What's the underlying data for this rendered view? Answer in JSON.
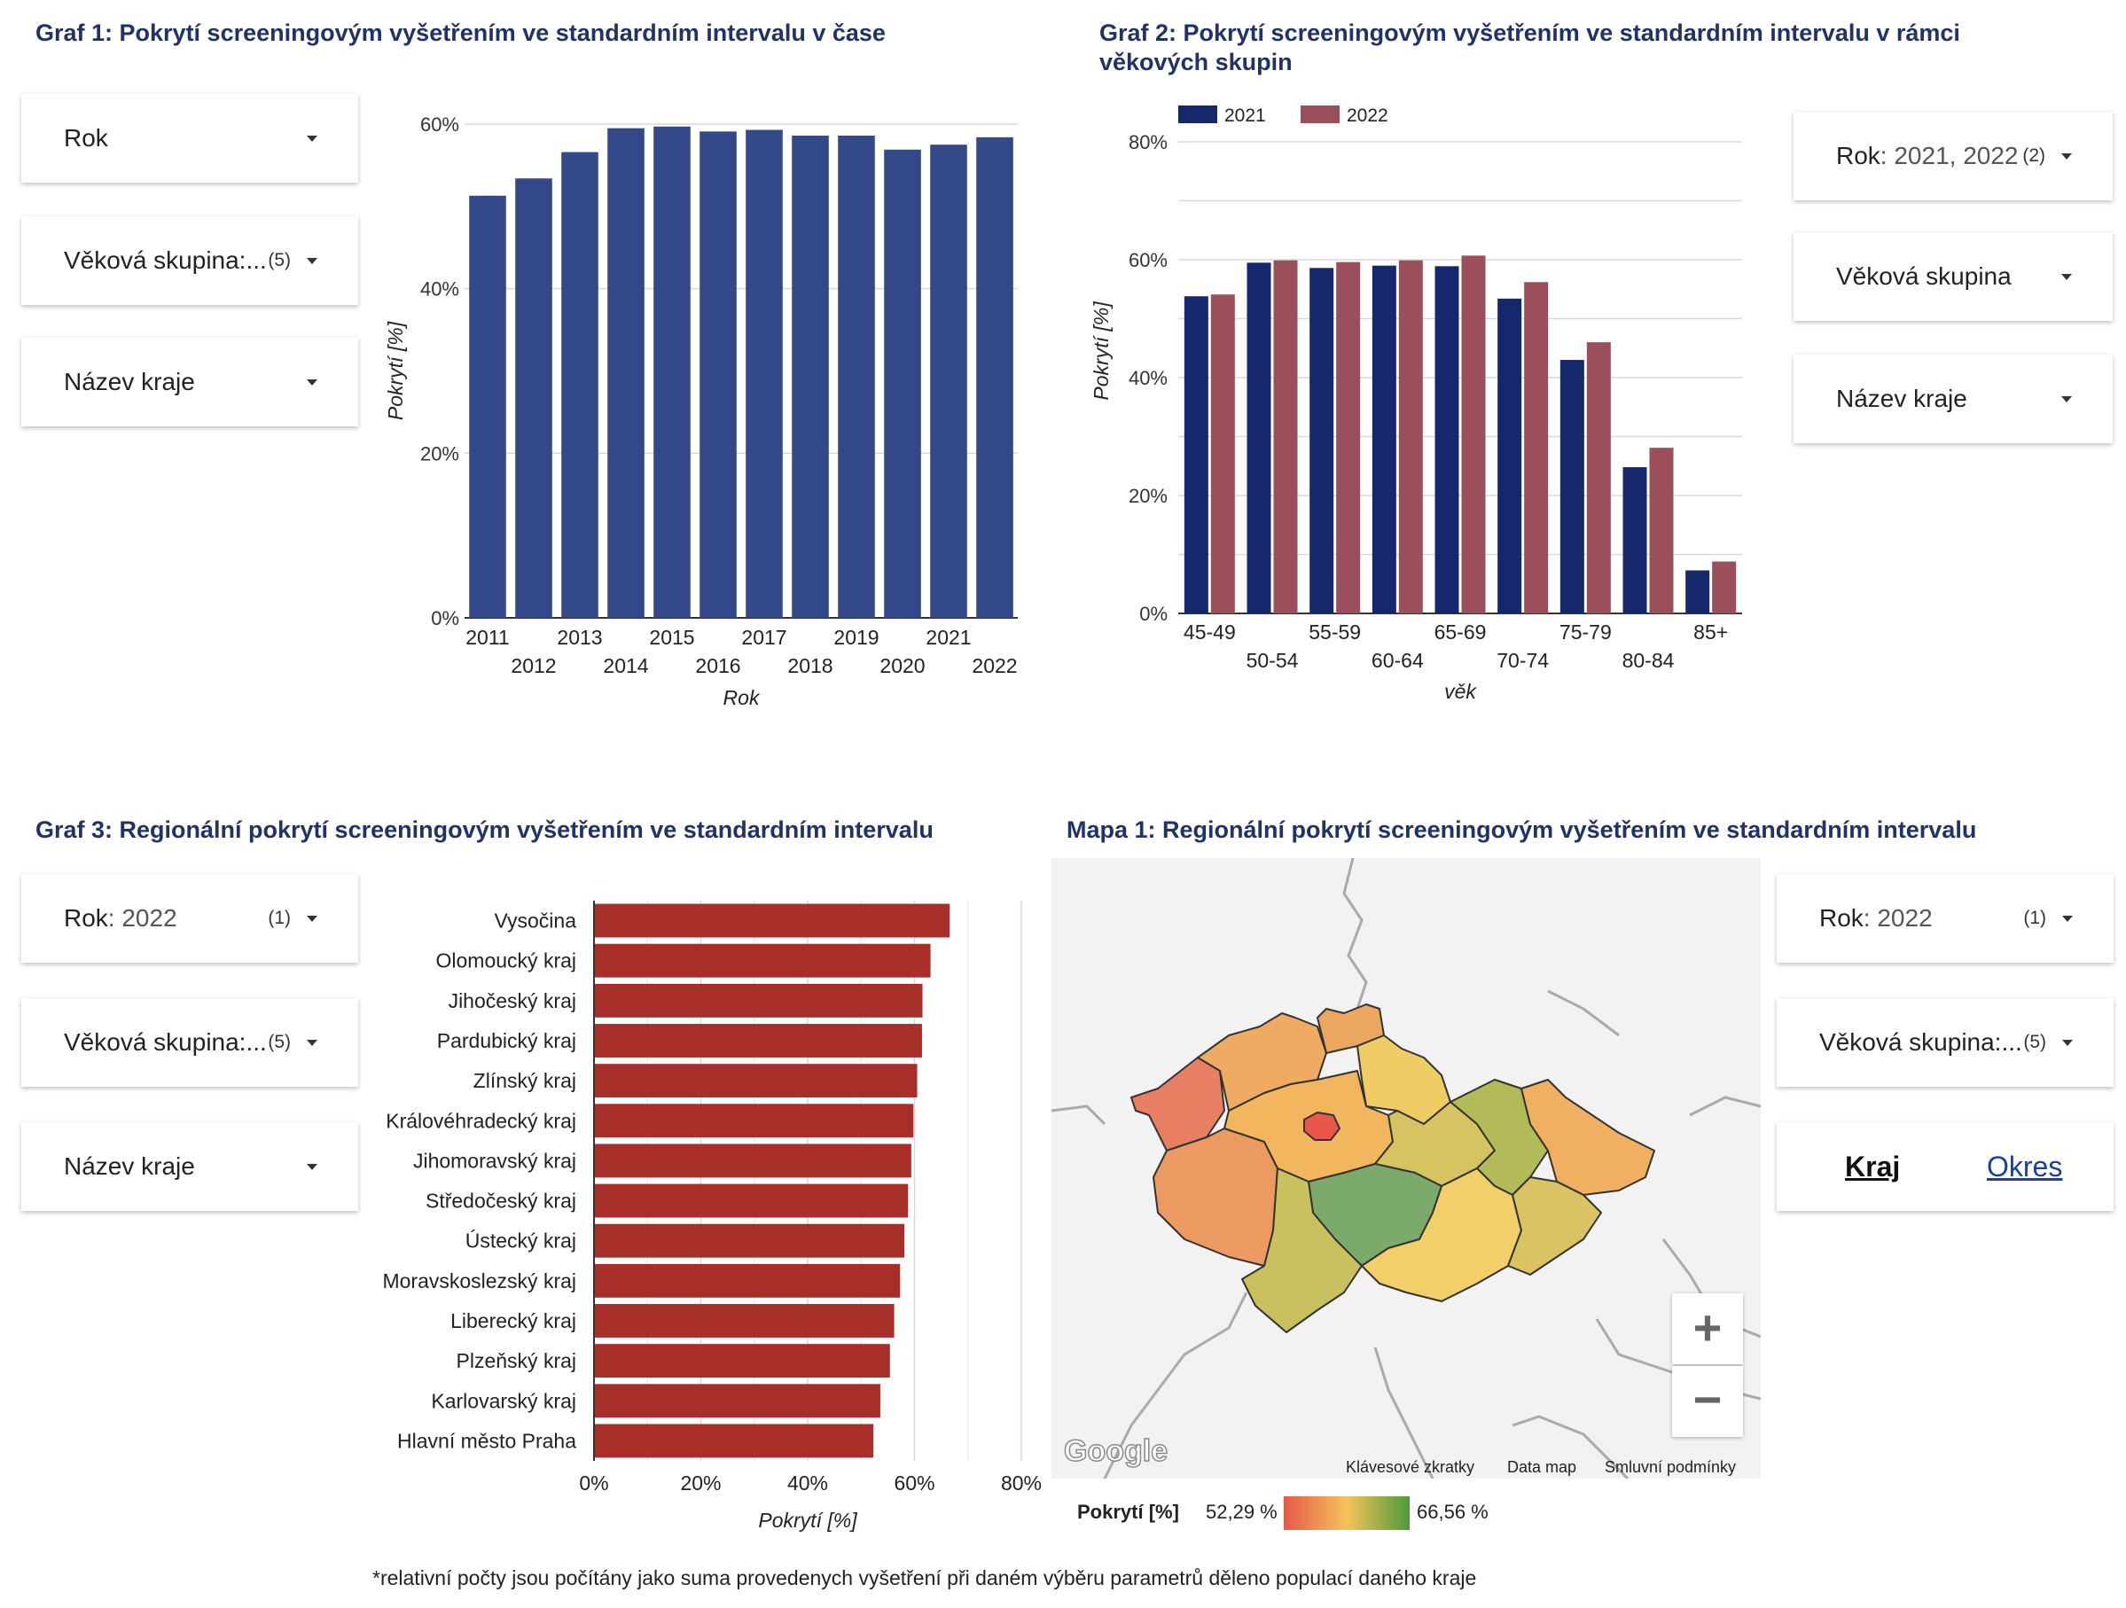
{
  "chart1": {
    "title": "Graf 1: Pokrytí screeningovým vyšetřením ve standardním intervalu v čase",
    "filters": [
      {
        "label": "Rok",
        "value": "",
        "count": ""
      },
      {
        "label": "Věková skupina:...",
        "value": "",
        "count": "(5)"
      },
      {
        "label": "Název kraje",
        "value": "",
        "count": ""
      }
    ],
    "chart_data": {
      "type": "bar",
      "categories": [
        "2011",
        "2012",
        "2013",
        "2014",
        "2015",
        "2016",
        "2017",
        "2018",
        "2019",
        "2020",
        "2021",
        "2022"
      ],
      "values": [
        51.3,
        53.4,
        56.6,
        59.5,
        59.7,
        59.1,
        59.3,
        58.6,
        58.6,
        56.9,
        57.5,
        58.4
      ],
      "yticks": [
        "0%",
        "20%",
        "40%",
        "60%"
      ],
      "ylim": [
        0,
        60
      ],
      "xlabel": "Rok",
      "ylabel": "Pokrytí [%]",
      "color": "#34498a"
    }
  },
  "chart2": {
    "title_line1": "Graf 2: Pokrytí screeningovým vyšetřením ve standardním intervalu v rámci",
    "title_line2": "věkových skupin",
    "filters": [
      {
        "label": "Rok",
        "value": ": 2021, 2022",
        "count": "(2)"
      },
      {
        "label": "Věková skupina",
        "value": "",
        "count": ""
      },
      {
        "label": "Název kraje",
        "value": "",
        "count": ""
      }
    ],
    "chart_data": {
      "type": "bar",
      "categories": [
        "45-49",
        "50-54",
        "55-59",
        "60-64",
        "65-69",
        "70-74",
        "75-79",
        "80-84",
        "85+"
      ],
      "series": [
        {
          "name": "2021",
          "color": "#14286b",
          "values": [
            53.8,
            59.5,
            58.6,
            59.0,
            58.9,
            53.4,
            43.0,
            24.8,
            7.3
          ]
        },
        {
          "name": "2022",
          "color": "#9b4f5b",
          "values": [
            54.1,
            59.9,
            59.6,
            59.9,
            60.7,
            56.2,
            46.0,
            28.1,
            8.8
          ]
        }
      ],
      "yticks": [
        "0%",
        "20%",
        "40%",
        "60%",
        "80%"
      ],
      "ylim": [
        0,
        80
      ],
      "xlabel": "věk",
      "ylabel": "Pokrytí [%]"
    }
  },
  "chart3": {
    "title": "Graf 3: Regionální pokrytí screeningovým vyšetřením ve standardním intervalu",
    "filters": [
      {
        "label": "Rok",
        "value": ": 2022",
        "count": "(1)"
      },
      {
        "label": "Věková skupina:...",
        "value": "",
        "count": "(5)"
      },
      {
        "label": "Název kraje",
        "value": "",
        "count": ""
      }
    ],
    "chart_data": {
      "type": "bar",
      "orientation": "horizontal",
      "categories": [
        "Vysočina",
        "Olomoucký kraj",
        "Jihočeský kraj",
        "Pardubický kraj",
        "Zlínský kraj",
        "Královéhradecký kraj",
        "Jihomoravský kraj",
        "Středočeský kraj",
        "Ústecký kraj",
        "Moravskoslezský kraj",
        "Liberecký kraj",
        "Plzeňský kraj",
        "Karlovarský kraj",
        "Hlavní město Praha"
      ],
      "values": [
        66.6,
        63.0,
        61.5,
        61.4,
        60.5,
        59.8,
        59.4,
        58.8,
        58.1,
        57.3,
        56.2,
        55.4,
        53.6,
        52.3
      ],
      "xticks": [
        "0%",
        "20%",
        "40%",
        "60%",
        "80%"
      ],
      "xlim": [
        0,
        80
      ],
      "xlabel": "Pokrytí [%]",
      "color": "#a82e2a"
    }
  },
  "map1": {
    "title": "Mapa 1: Regionální pokrytí screeningovým vyšetřením ve standardním intervalu",
    "filters": [
      {
        "label": "Rok",
        "value": ": 2022",
        "count": "(1)"
      },
      {
        "label": "Věková skupina:...",
        "value": "",
        "count": "(5)"
      }
    ],
    "toggle": {
      "active": "Kraj",
      "inactive": "Okres"
    },
    "zoom_in": "+",
    "zoom_out": "−",
    "google_logo": "Google",
    "links": [
      "Klávesové zkratky",
      "Data map",
      "Smluvní podmínky"
    ],
    "legend": {
      "label": "Pokrytí [%]",
      "min": "52,29 %",
      "max": "66,56 %"
    },
    "colors": {
      "low": "#e8574a",
      "mid": "#f4c45a",
      "high": "#4e9a3c"
    }
  },
  "footnote": "*relativní počty jsou počítány jako suma provedenych vyšetření při daném výběru parametrů děleno populací daného kraje"
}
